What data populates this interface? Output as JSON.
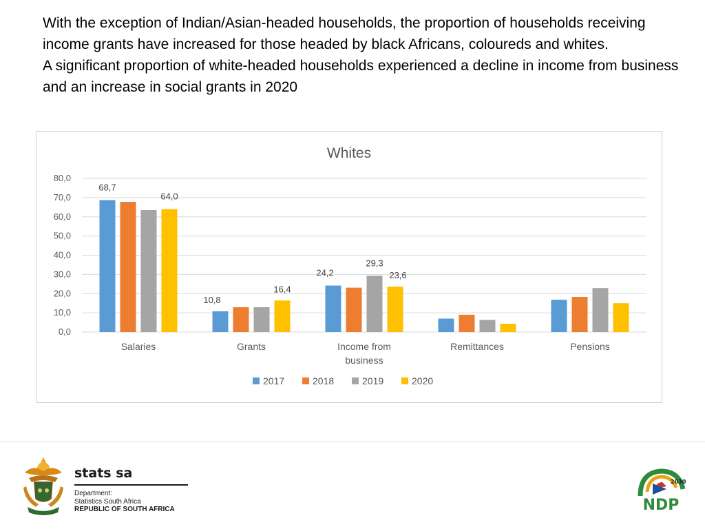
{
  "heading": {
    "line1": "With the exception of Indian/Asian-headed households, the proportion of households receiving income grants have increased for those headed by black Africans, coloureds and whites.",
    "line2": "A significant proportion of white-headed households experienced a decline in income from business and an increase in social grants in 2020"
  },
  "chart_data": {
    "type": "bar",
    "title": "Whites",
    "categories": [
      "Salaries",
      "Grants",
      "Income from business",
      "Remittances",
      "Pensions"
    ],
    "category_lines": [
      [
        "Salaries"
      ],
      [
        "Grants"
      ],
      [
        "Income from",
        "business"
      ],
      [
        "Remittances"
      ],
      [
        "Pensions"
      ]
    ],
    "series": [
      {
        "name": "2017",
        "color": "#5b9bd5",
        "values": [
          68.7,
          10.8,
          24.2,
          7.0,
          16.8
        ]
      },
      {
        "name": "2018",
        "color": "#ed7d31",
        "values": [
          67.8,
          12.9,
          23.1,
          9.0,
          18.3
        ]
      },
      {
        "name": "2019",
        "color": "#a5a5a5",
        "values": [
          63.5,
          12.9,
          29.3,
          6.3,
          22.9
        ]
      },
      {
        "name": "2020",
        "color": "#ffc000",
        "values": [
          64.0,
          16.4,
          23.6,
          4.3,
          15.0
        ]
      }
    ],
    "data_labels": [
      {
        "series": 0,
        "category": 0,
        "text": "68,7"
      },
      {
        "series": 3,
        "category": 0,
        "text": "64,0"
      },
      {
        "series": 0,
        "category": 1,
        "text": "10,8"
      },
      {
        "series": 3,
        "category": 1,
        "text": "16,4"
      },
      {
        "series": 0,
        "category": 2,
        "text": "24,2"
      },
      {
        "series": 2,
        "category": 2,
        "text": "29,3"
      },
      {
        "series": 3,
        "category": 2,
        "text": "23,6"
      }
    ],
    "y_ticks": [
      "0,0",
      "10,0",
      "20,0",
      "30,0",
      "40,0",
      "50,0",
      "60,0",
      "70,0",
      "80,0"
    ],
    "ylim": [
      0,
      80
    ],
    "grid": true,
    "legend": "bottom",
    "xlabel": "",
    "ylabel": ""
  },
  "footer": {
    "brand": "stats sa",
    "dept_line1": "Department:",
    "dept_line2": "Statistics South Africa",
    "dept_line3": "REPUBLIC OF SOUTH AFRICA",
    "ndp_text": "NDP",
    "ndp_year": "2030"
  }
}
